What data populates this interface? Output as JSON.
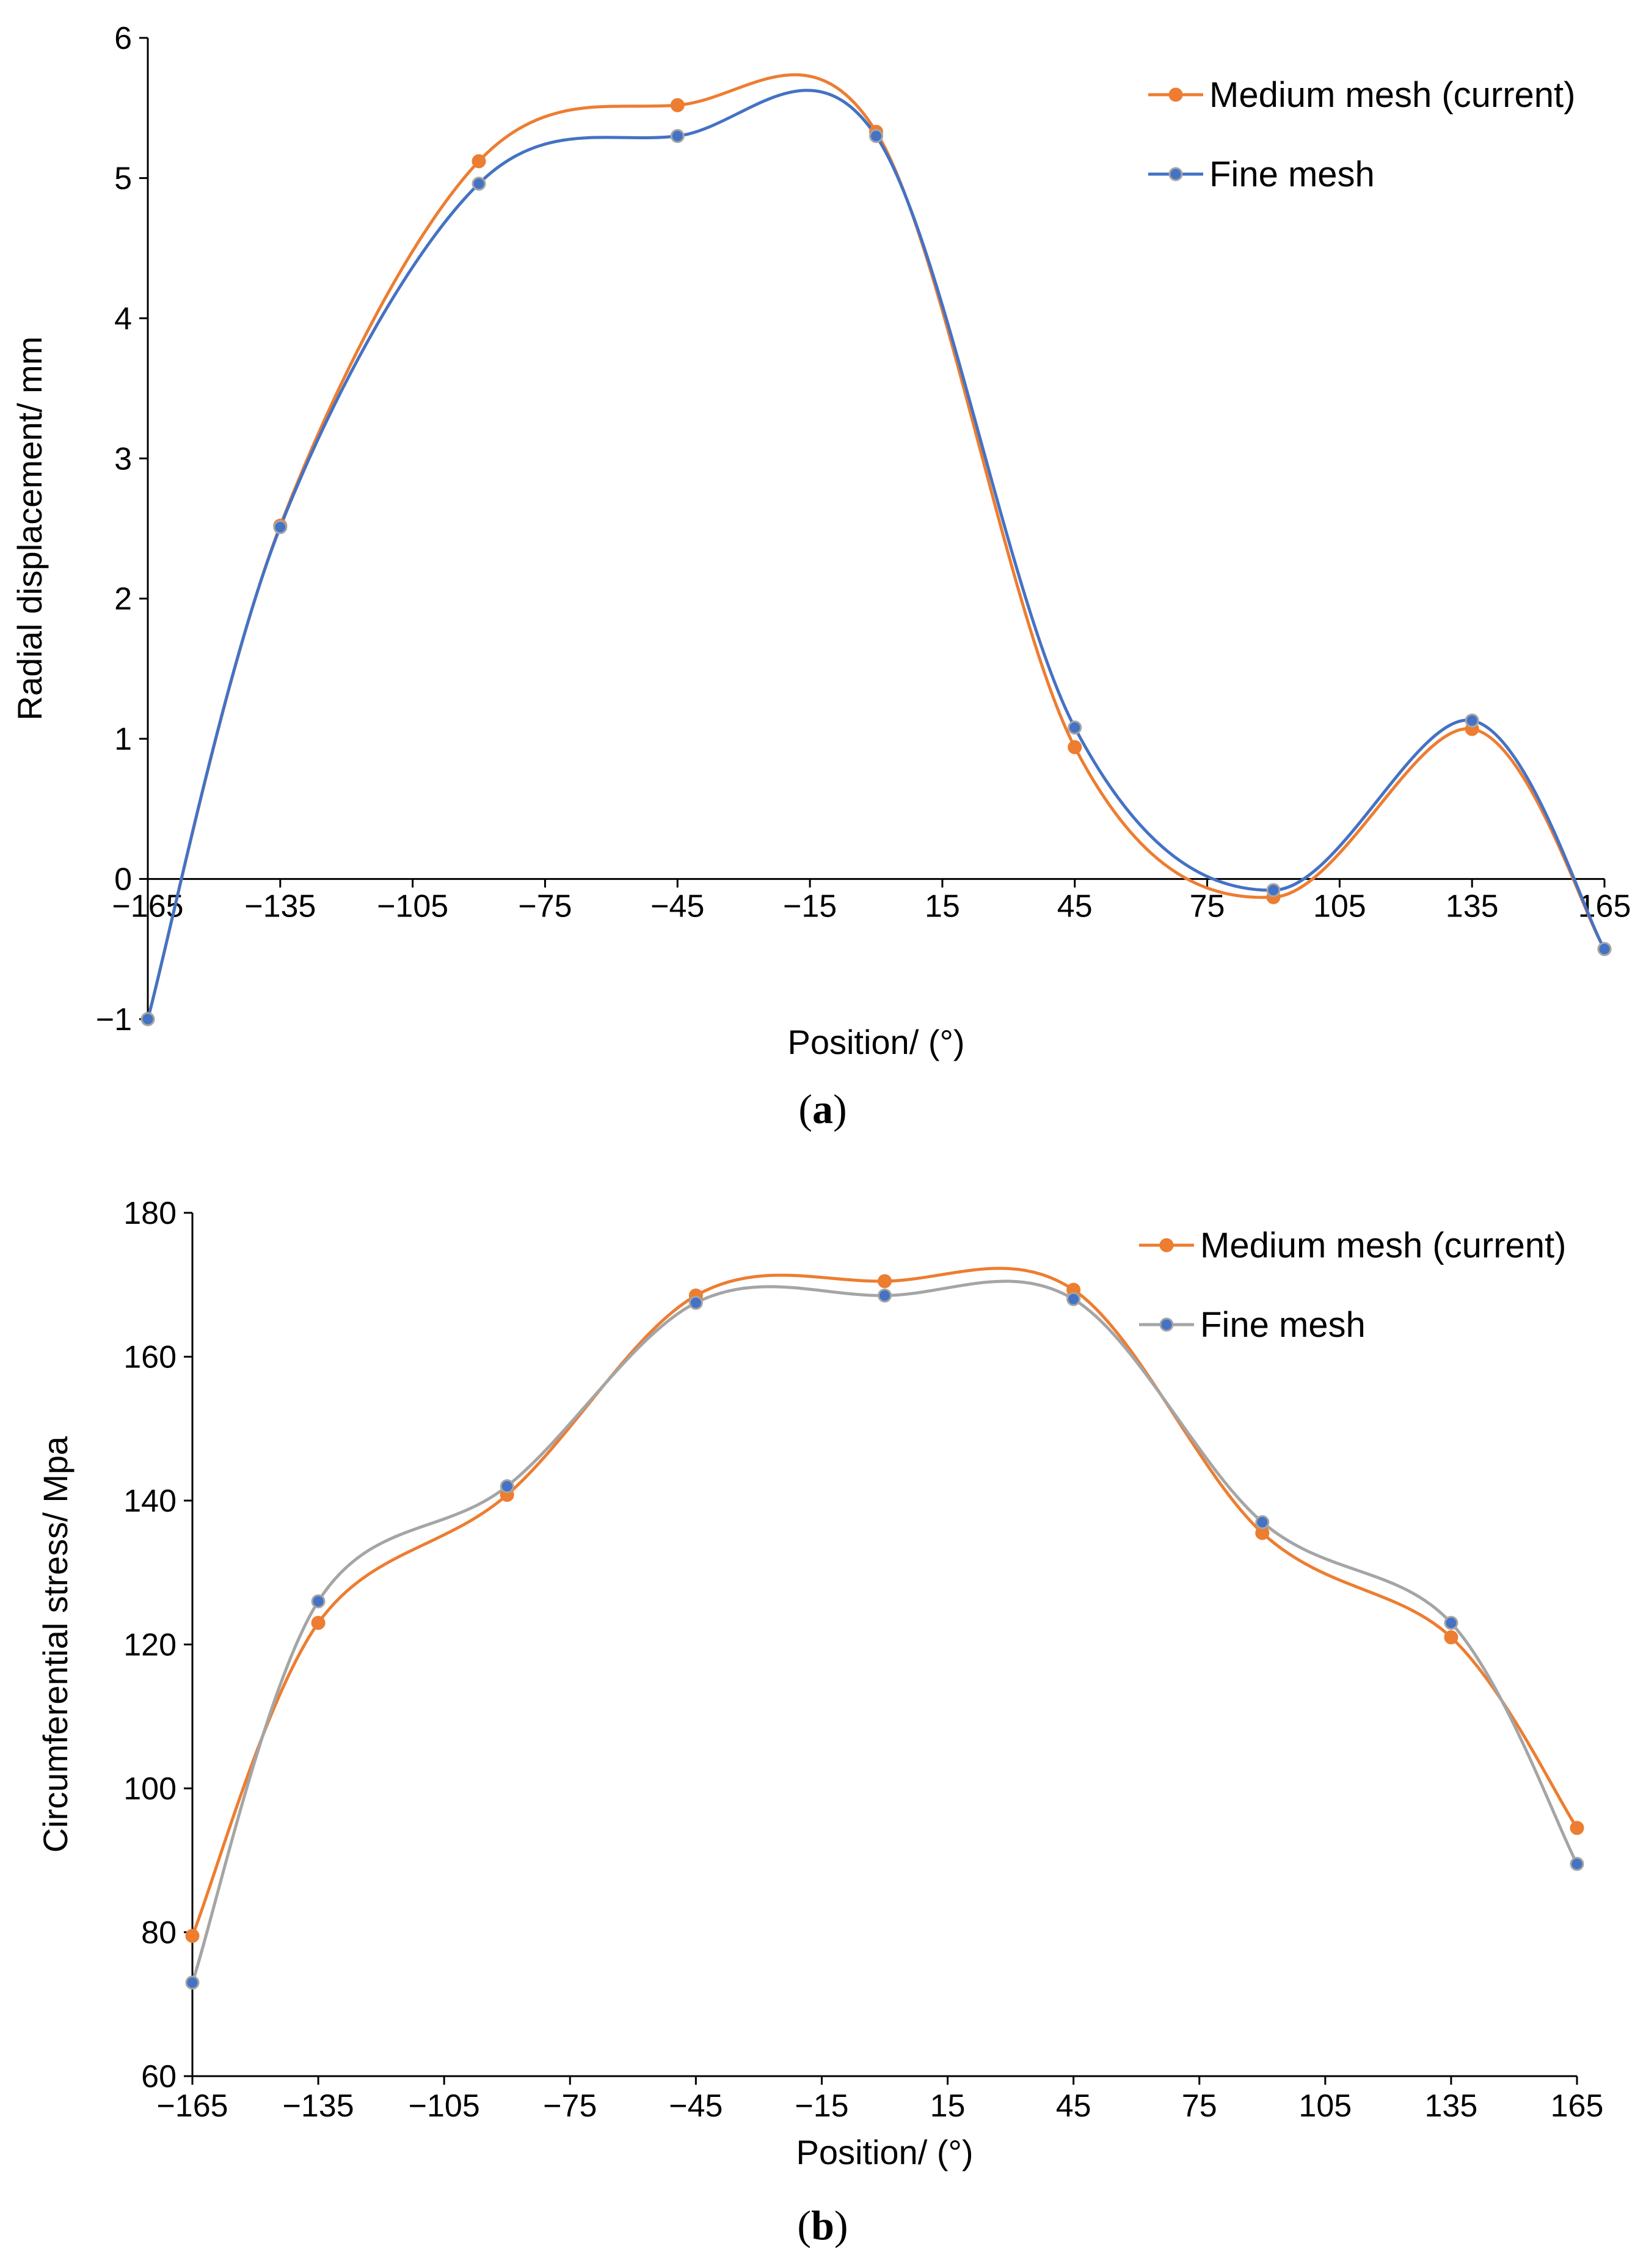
{
  "chart_data": [
    {
      "type": "line",
      "panel_label": "a",
      "xlabel": "Position/ (°)",
      "ylabel": "Radial displacement/ mm",
      "xlim": [
        -165,
        165
      ],
      "ylim": [
        -1,
        6
      ],
      "xticks": [
        "−165",
        "−135",
        "−105",
        "−75",
        "−45",
        "−15",
        "15",
        "45",
        "75",
        "105",
        "135",
        "165"
      ],
      "yticks": [
        "−1",
        "0",
        "1",
        "2",
        "3",
        "4",
        "5",
        "6"
      ],
      "x": [
        -165,
        -135,
        -90,
        -45,
        0,
        45,
        90,
        135,
        165
      ],
      "series": [
        {
          "name": "Medium mesh (current)",
          "color": "#ED7D31",
          "marker": "#ED7D31",
          "values": [
            -1.0,
            2.52,
            5.12,
            5.52,
            5.33,
            0.94,
            -0.13,
            1.07,
            -0.5
          ]
        },
        {
          "name": "Fine mesh",
          "color": "#4472C4",
          "marker": "#4472C4",
          "values": [
            -1.0,
            2.51,
            4.96,
            5.3,
            5.3,
            1.08,
            -0.08,
            1.13,
            -0.5
          ]
        }
      ]
    },
    {
      "type": "line",
      "panel_label": "b",
      "xlabel": "Position/ (°)",
      "ylabel": "Circumferential stress/ Mpa",
      "xlim": [
        -165,
        165
      ],
      "ylim": [
        60,
        180
      ],
      "xticks": [
        "−165",
        "−135",
        "−105",
        "−75",
        "−45",
        "−15",
        "15",
        "45",
        "75",
        "105",
        "135",
        "165"
      ],
      "yticks": [
        "60",
        "80",
        "100",
        "120",
        "140",
        "160",
        "180"
      ],
      "x": [
        -165,
        -135,
        -90,
        -45,
        0,
        45,
        90,
        135,
        165
      ],
      "series": [
        {
          "name": "Medium mesh (current)",
          "color": "#ED7D31",
          "marker": "#ED7D31",
          "values": [
            79.5,
            123.0,
            140.8,
            168.5,
            170.5,
            169.3,
            135.5,
            121.0,
            94.5
          ]
        },
        {
          "name": "Fine mesh",
          "color": "#A5A5A5",
          "marker": "#4472C4",
          "values": [
            73.0,
            126.0,
            142.0,
            167.5,
            168.5,
            168.0,
            137.0,
            123.0,
            89.5
          ]
        }
      ]
    }
  ]
}
